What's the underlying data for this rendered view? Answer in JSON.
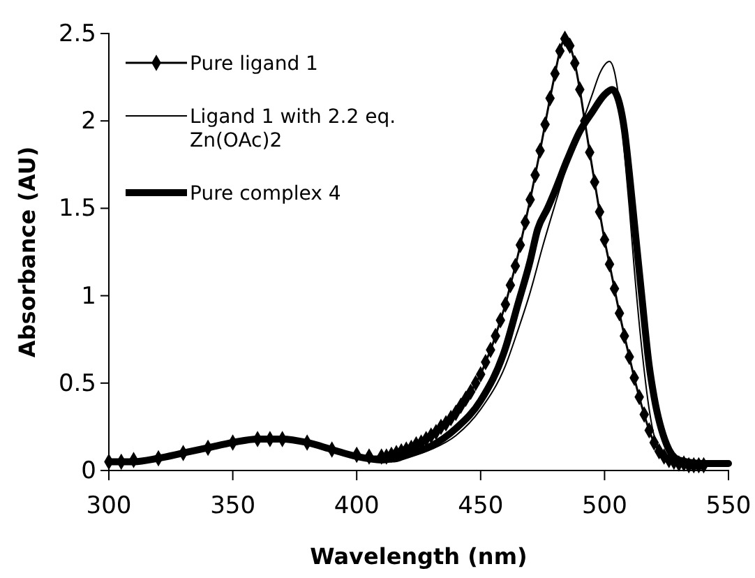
{
  "chart_data": {
    "type": "line",
    "xlabel": "Wavelength (nm)",
    "ylabel": "Absorbance (AU)",
    "xlim": [
      300,
      550
    ],
    "xticks": [
      300,
      350,
      400,
      450,
      500,
      550
    ],
    "ylim": [
      0,
      2.5
    ],
    "yticks": [
      0,
      0.5,
      1,
      1.5,
      2,
      2.5
    ],
    "grid": false,
    "legend": "top left",
    "series": [
      {
        "name": "Pure ligand 1",
        "color": "#000000",
        "marker": "diamond",
        "x": [
          300,
          305,
          310,
          320,
          330,
          340,
          350,
          360,
          365,
          370,
          380,
          390,
          400,
          405,
          410,
          412,
          414,
          416,
          418,
          420,
          422,
          424,
          426,
          428,
          430,
          432,
          434,
          436,
          438,
          440,
          442,
          444,
          446,
          448,
          450,
          452,
          454,
          456,
          458,
          460,
          462,
          464,
          466,
          468,
          470,
          472,
          474,
          476,
          478,
          480,
          482,
          484,
          486,
          488,
          490,
          492,
          494,
          496,
          498,
          500,
          502,
          504,
          506,
          508,
          510,
          512,
          514,
          516,
          518,
          520,
          522,
          524,
          526,
          528,
          530,
          532,
          534,
          536,
          538,
          540
        ],
        "values": [
          0.05,
          0.05,
          0.06,
          0.07,
          0.1,
          0.13,
          0.16,
          0.18,
          0.18,
          0.18,
          0.16,
          0.12,
          0.09,
          0.08,
          0.08,
          0.08,
          0.09,
          0.1,
          0.11,
          0.12,
          0.13,
          0.15,
          0.16,
          0.18,
          0.2,
          0.22,
          0.25,
          0.27,
          0.3,
          0.33,
          0.37,
          0.41,
          0.45,
          0.5,
          0.55,
          0.62,
          0.69,
          0.77,
          0.86,
          0.95,
          1.06,
          1.17,
          1.29,
          1.42,
          1.55,
          1.69,
          1.83,
          1.98,
          2.13,
          2.27,
          2.4,
          2.47,
          2.43,
          2.33,
          2.18,
          2.0,
          1.82,
          1.65,
          1.48,
          1.32,
          1.18,
          1.04,
          0.9,
          0.77,
          0.65,
          0.53,
          0.42,
          0.32,
          0.23,
          0.16,
          0.11,
          0.08,
          0.06,
          0.05,
          0.04,
          0.04,
          0.03,
          0.03,
          0.03,
          0.03
        ]
      },
      {
        "name": "Ligand 1 with 2.2 eq. Zn(OAc)2",
        "color": "#000000",
        "marker": "none",
        "x": [
          300,
          310,
          320,
          330,
          340,
          350,
          360,
          365,
          370,
          380,
          390,
          400,
          410,
          415,
          420,
          430,
          440,
          450,
          460,
          465,
          470,
          475,
          480,
          485,
          490,
          495,
          498,
          500,
          502,
          504,
          506,
          508,
          510,
          512,
          515,
          518,
          520,
          525,
          530,
          540,
          550
        ],
        "values": [
          0.05,
          0.05,
          0.07,
          0.1,
          0.13,
          0.16,
          0.18,
          0.18,
          0.18,
          0.16,
          0.12,
          0.08,
          0.05,
          0.05,
          0.07,
          0.12,
          0.2,
          0.35,
          0.6,
          0.8,
          1.02,
          1.28,
          1.52,
          1.75,
          1.95,
          2.15,
          2.27,
          2.32,
          2.34,
          2.28,
          2.1,
          1.82,
          1.5,
          1.15,
          0.7,
          0.35,
          0.2,
          0.08,
          0.04,
          0.03,
          0.03
        ]
      },
      {
        "name": "Pure complex 4",
        "color": "#000000",
        "marker": "none",
        "x": [
          300,
          310,
          320,
          330,
          340,
          350,
          360,
          365,
          370,
          380,
          390,
          400,
          410,
          415,
          420,
          430,
          440,
          450,
          460,
          465,
          470,
          473,
          477,
          480,
          485,
          490,
          495,
          500,
          503,
          506,
          508,
          510,
          512,
          515,
          518,
          520,
          525,
          530,
          540,
          550
        ],
        "values": [
          0.05,
          0.05,
          0.07,
          0.1,
          0.13,
          0.16,
          0.18,
          0.18,
          0.18,
          0.16,
          0.12,
          0.08,
          0.06,
          0.07,
          0.09,
          0.14,
          0.24,
          0.4,
          0.7,
          0.95,
          1.2,
          1.38,
          1.5,
          1.6,
          1.78,
          1.94,
          2.05,
          2.15,
          2.18,
          2.1,
          1.95,
          1.7,
          1.42,
          1.0,
          0.6,
          0.42,
          0.15,
          0.06,
          0.04,
          0.04
        ]
      }
    ]
  }
}
